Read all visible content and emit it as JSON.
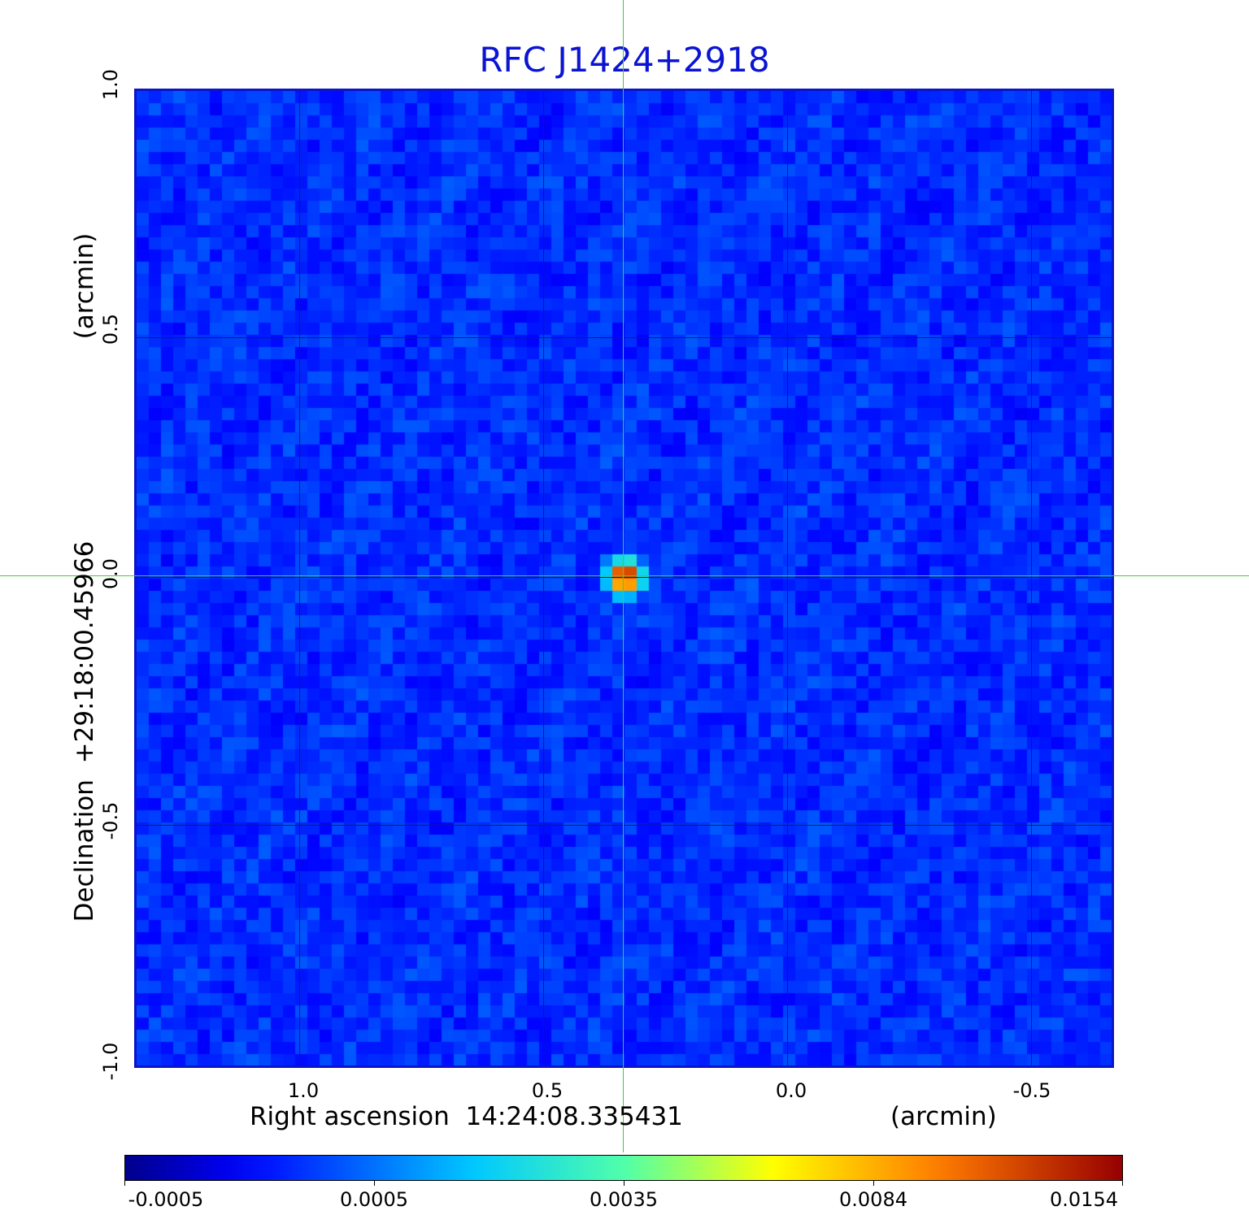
{
  "title": "RFC J1424+2918",
  "axes": {
    "x_label": "Right ascension  14:24:08.335431",
    "x_units": "(arcmin)",
    "y_label": "Declination  +29:18:00.45966",
    "y_units": "(arcmin)",
    "x_ticks": [
      "1.0",
      "0.5",
      "0.0",
      "-0.5"
    ],
    "y_ticks": [
      "1.0",
      "0.5",
      "0.0",
      "-0.5",
      "-1.0"
    ]
  },
  "colorbar": {
    "labels": [
      "-0.0005",
      "0.0005",
      "0.0035",
      "0.0084",
      "0.0154"
    ]
  },
  "colors": {
    "title": "#0a14d2",
    "frame": "#0a14c8",
    "crosshair": "#3ad13a",
    "background_map": "#1e5ae6"
  }
}
